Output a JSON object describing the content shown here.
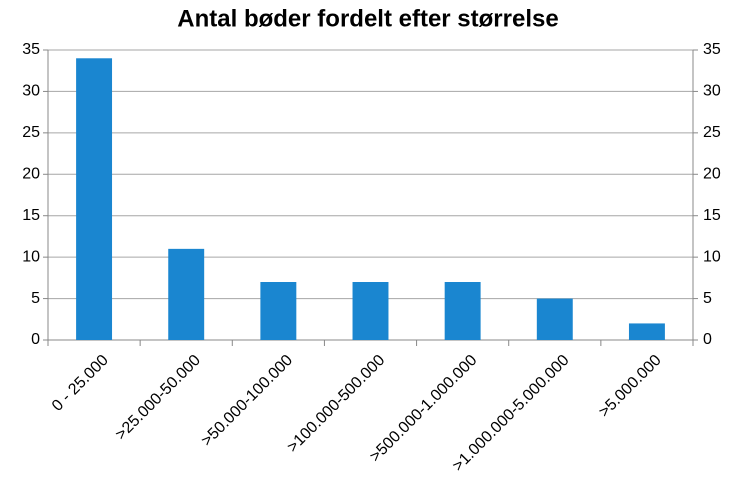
{
  "chart_data": {
    "type": "bar",
    "title": "Antal bøder fordelt efter størrelse",
    "categories": [
      "0 - 25.000",
      ">25.000-50.000",
      ">50.000-100.000",
      ">100.000-500.000",
      ">500.000-1.000.000",
      ">1.000.000-5.000.000",
      ">5.000.000"
    ],
    "values": [
      34,
      11,
      7,
      7,
      7,
      5,
      2
    ],
    "color": "#1a86d0",
    "ylim": [
      0,
      35
    ],
    "yticks": [
      0,
      5,
      10,
      15,
      20,
      25,
      30,
      35
    ],
    "y2lim": [
      0,
      35
    ],
    "y2ticks": [
      0,
      5,
      10,
      15,
      20,
      25,
      30,
      35
    ],
    "grid": true
  }
}
